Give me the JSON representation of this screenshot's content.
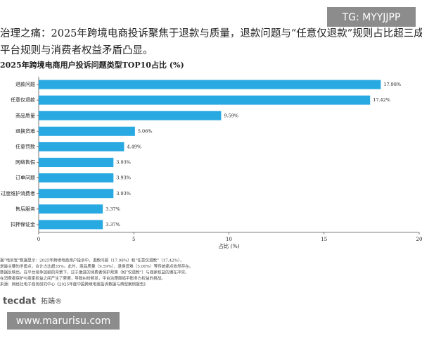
{
  "header": {
    "heading_lines": [
      "治理之痛：2025年跨境电商投诉聚焦于退款与质量，退款问题与“任意仅退款”规则占比超三成",
      "平台规则与消费者权益矛盾凸显。"
    ],
    "badge": "TG: MYYJJPP"
  },
  "chart_data": {
    "type": "bar",
    "orientation": "horizontal",
    "title": "2025年跨境电商用户投诉问题类型TOP10占比 (%)",
    "categories": [
      "退款问题",
      "任意仅退款",
      "商品质量",
      "退换货难",
      "任意罚款",
      "网络售假",
      "订单问题",
      "过度维护消费者",
      "售后服务",
      "扣押保证金"
    ],
    "values": [
      17.98,
      17.42,
      9.59,
      5.06,
      4.49,
      3.93,
      3.93,
      3.93,
      3.37,
      3.37
    ],
    "value_labels": [
      "17.98%",
      "17.42%",
      "9.59%",
      "5.06%",
      "4.49%",
      "3.93%",
      "3.93%",
      "3.93%",
      "3.37%",
      "3.37%"
    ],
    "color": "#29a9e1",
    "xlim": [
      0,
      20
    ],
    "xticks": [
      0,
      5,
      10,
      15,
      20
    ],
    "xlabel": "占比 (%)",
    "grid": false
  },
  "notes": [
    "据“电诉宝”数据显示：2025年跨境电商用户投诉中，退款问题（17.98%）和“任意仅退款”（17.42%），",
    "是最主要的矛盾点，合计占比超35%。此外，商品质量（9.59%）、退换货难（5.06%）等传统痛点依然存在。",
    "数据反映出，在平台竞争加剧的背景下，过于激进的消费者保护政策（如“仅退款”）与商家权益的潜在冲突，",
    "在消费者保护与商家权益之间产生了摩擦，导致纠纷频发，平台治理面临平衡多方权益的挑战。",
    "来源：网经社电子商务研究中心《2025年度中国跨境电商投诉数据与典型案例报告》"
  ],
  "logo": {
    "brand": "tecdat",
    "name": "拓端®"
  },
  "watermark": "www.marurisu.com"
}
